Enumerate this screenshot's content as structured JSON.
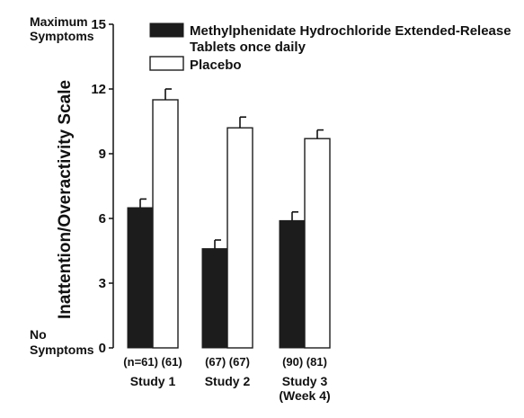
{
  "chart_data": {
    "type": "bar",
    "ylabel": "Inattention/Overactivity Scale",
    "ylim": [
      0,
      15
    ],
    "yticks": [
      0,
      3,
      6,
      9,
      12,
      15
    ],
    "top_note": [
      "Maximum",
      "Symptoms"
    ],
    "bottom_note": [
      "No",
      "Symptoms"
    ],
    "legend_position": "top-right",
    "categories": [
      {
        "lines": [
          "Study 1"
        ],
        "n": [
          "(n=61)",
          "(61)"
        ]
      },
      {
        "lines": [
          "Study 2"
        ],
        "n": [
          "(67)",
          "(67)"
        ]
      },
      {
        "lines": [
          "Study 3",
          "(Week 4)"
        ],
        "n": [
          "(90)",
          "(81)"
        ]
      }
    ],
    "series": [
      {
        "name_lines": [
          "Methylphenidate Hydrochloride Extended-Release",
          "Tablets once daily"
        ],
        "color": "#1c1c1c",
        "values": [
          6.5,
          4.6,
          5.9
        ],
        "error_upper": [
          6.9,
          5.0,
          6.3
        ]
      },
      {
        "name_lines": [
          "Placebo"
        ],
        "color": "#ffffff",
        "values": [
          11.5,
          10.2,
          9.7
        ],
        "error_upper": [
          12.0,
          10.7,
          10.1
        ]
      }
    ]
  }
}
